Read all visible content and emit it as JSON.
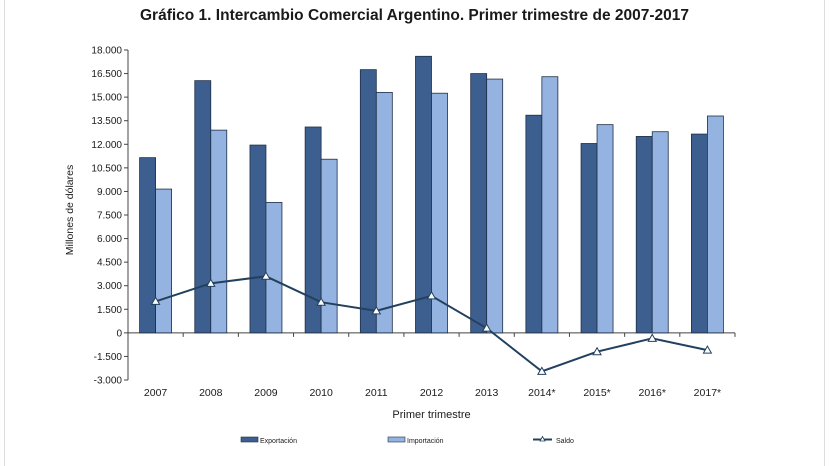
{
  "chart_data": {
    "type": "bar",
    "title": "Gráfico 1. Intercambio Comercial Argentino. Primer trimestre de 2007-2017",
    "xlabel": "Primer trimestre",
    "ylabel": "Millones de dólares",
    "ylim": [
      -3000,
      18000
    ],
    "yticks": [
      -3000,
      -1500,
      0,
      1500,
      3000,
      4500,
      6000,
      7500,
      9000,
      10500,
      12000,
      13500,
      15000,
      16500,
      18000
    ],
    "ytick_labels": [
      "-3.000",
      "-1.500",
      "0",
      "1.500",
      "3.000",
      "4.500",
      "6.000",
      "7.500",
      "9.000",
      "10.500",
      "12.000",
      "13.500",
      "15.000",
      "16.500",
      "18.000"
    ],
    "categories": [
      "2007",
      "2008",
      "2009",
      "2010",
      "2011",
      "2012",
      "2013",
      "2014*",
      "2015*",
      "2016*",
      "2017*"
    ],
    "grid": false,
    "legend_position": "bottom",
    "series": [
      {
        "name": "Exportación",
        "type": "bar",
        "color": "#3d5f8f",
        "values": [
          11150,
          16050,
          11950,
          13100,
          16750,
          17600,
          16500,
          13850,
          12050,
          12500,
          12650
        ]
      },
      {
        "name": "Importación",
        "type": "bar",
        "color": "#94b3e0",
        "values": [
          9150,
          12900,
          8300,
          11050,
          15300,
          15250,
          16150,
          16300,
          13250,
          12800,
          13800
        ]
      },
      {
        "name": "Saldo",
        "type": "line",
        "color": "#23405f",
        "values": [
          2000,
          3150,
          3600,
          1950,
          1400,
          2350,
          300,
          -2450,
          -1200,
          -350,
          -1100
        ]
      }
    ]
  }
}
